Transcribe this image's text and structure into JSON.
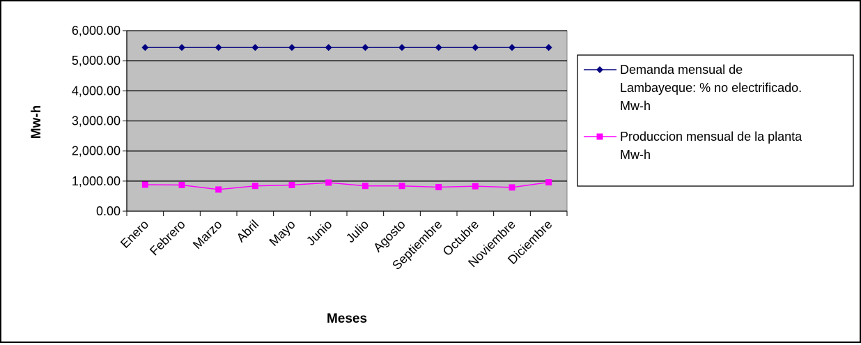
{
  "chart_data": {
    "type": "line",
    "title": "",
    "xlabel": "Meses",
    "ylabel": "Mw-h",
    "ylim": [
      0,
      6000
    ],
    "y_ticks": [
      "0.00",
      "1,000.00",
      "2,000.00",
      "3,000.00",
      "4,000.00",
      "5,000.00",
      "6,000.00"
    ],
    "grid": true,
    "plot_background": "#c0c0c0",
    "legend_position": "right",
    "categories": [
      "Enero",
      "Febrero",
      "Marzo",
      "Abril",
      "Mayo",
      "Junio",
      "Julio",
      "Agosto",
      "Septiembre",
      "Octubre",
      "Noviembre",
      "Diciembre"
    ],
    "series": [
      {
        "name": "Demanda mensual de Lambayeque: % no electrificado. Mw-h",
        "legend_lines": [
          "Demanda mensual de",
          "Lambayeque: % no electrificado.",
          "Mw-h"
        ],
        "color": "#000080",
        "marker": "diamond",
        "values": [
          5440,
          5440,
          5440,
          5440,
          5440,
          5440,
          5440,
          5440,
          5440,
          5440,
          5440,
          5440
        ]
      },
      {
        "name": "Produccion mensual de la planta Mw-h",
        "legend_lines": [
          "Produccion mensual de la planta",
          "Mw-h"
        ],
        "color": "#ff00ff",
        "marker": "square",
        "values": [
          880,
          870,
          720,
          840,
          870,
          950,
          840,
          840,
          800,
          830,
          790,
          960
        ]
      }
    ]
  }
}
